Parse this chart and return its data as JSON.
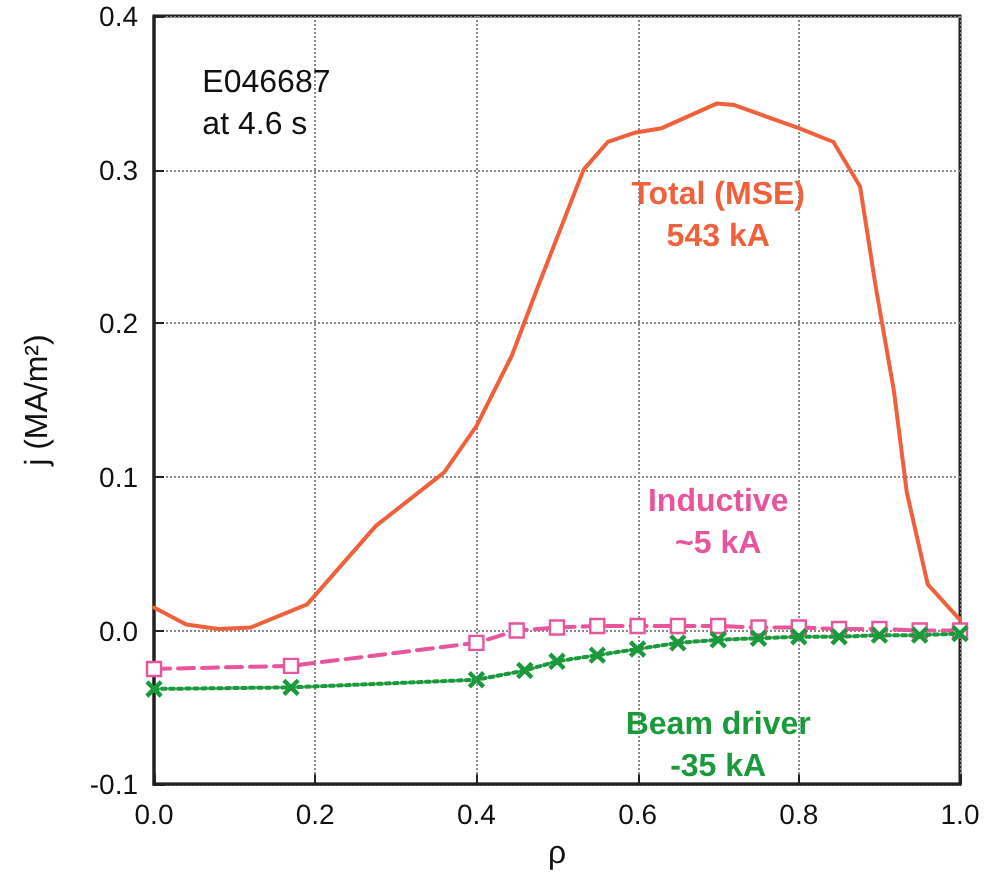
{
  "chart_data": {
    "type": "line",
    "xlabel": "ρ",
    "ylabel": "j (MA/m²)",
    "annotations": [
      "E046687\nat 4.6 s"
    ],
    "xlim": [
      0,
      1
    ],
    "xticks": [
      {
        "value": 0,
        "label": "0.0"
      },
      0.2,
      0.4,
      0.6,
      0.8,
      {
        "value": 1,
        "label": "1.0"
      }
    ],
    "ylim": [
      -0.1,
      0.4
    ],
    "yticks": [
      -0.1,
      {
        "value": 0,
        "label": "0.0"
      },
      0.1,
      0.2,
      0.3,
      0.4
    ],
    "grid": true,
    "series": [
      {
        "name": "Total (MSE)\n543 kA",
        "color": "#f0603a",
        "marker": "none",
        "line_style": "solid",
        "x": [
          0,
          0.04,
          0.08,
          0.12,
          0.19,
          0.275,
          0.36,
          0.4,
          0.444,
          0.475,
          0.533,
          0.563,
          0.596,
          0.63,
          0.698,
          0.72,
          0.8,
          0.843,
          0.876,
          0.896,
          0.918,
          0.934,
          0.96,
          1.0
        ],
        "values": [
          0.015,
          0.004,
          0.001,
          0.002,
          0.017,
          0.068,
          0.103,
          0.133,
          0.179,
          0.222,
          0.3,
          0.318,
          0.324,
          0.327,
          0.343,
          0.342,
          0.327,
          0.318,
          0.289,
          0.222,
          0.156,
          0.09,
          0.03,
          0.007
        ]
      },
      {
        "name": "Inductive\n~5 kA",
        "color": "#e8559c",
        "marker": "square",
        "line_style": "dashed",
        "x": [
          0,
          0.17,
          0.4,
          0.45,
          0.5,
          0.55,
          0.6,
          0.65,
          0.7,
          0.75,
          0.8,
          0.85,
          0.9,
          0.95,
          1.0
        ],
        "values": [
          -0.025,
          -0.023,
          -0.008,
          0.0,
          0.002,
          0.003,
          0.003,
          0.003,
          0.003,
          0.002,
          0.002,
          0.001,
          0.001,
          0.0,
          0.0
        ]
      },
      {
        "name": "Beam driver\n-35 kA",
        "color": "#1a9a3a",
        "marker": "cross",
        "line_style": "dotted",
        "x": [
          0,
          0.17,
          0.4,
          0.46,
          0.5,
          0.55,
          0.6,
          0.65,
          0.7,
          0.75,
          0.8,
          0.85,
          0.9,
          0.95,
          1.0
        ],
        "values": [
          -0.038,
          -0.037,
          -0.032,
          -0.026,
          -0.02,
          -0.016,
          -0.012,
          -0.008,
          -0.006,
          -0.005,
          -0.004,
          -0.004,
          -0.003,
          -0.003,
          -0.002
        ]
      }
    ]
  }
}
